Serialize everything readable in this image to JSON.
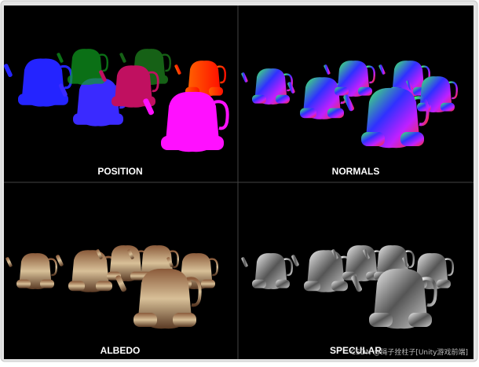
{
  "panels": [
    {
      "label": "POSITION"
    },
    {
      "label": "NORMALS"
    },
    {
      "label": "ALBEDO"
    },
    {
      "label": "SPECULAR"
    }
  ],
  "watermark": "CSDN @绳子拴柱子[Unity游戏前端]"
}
